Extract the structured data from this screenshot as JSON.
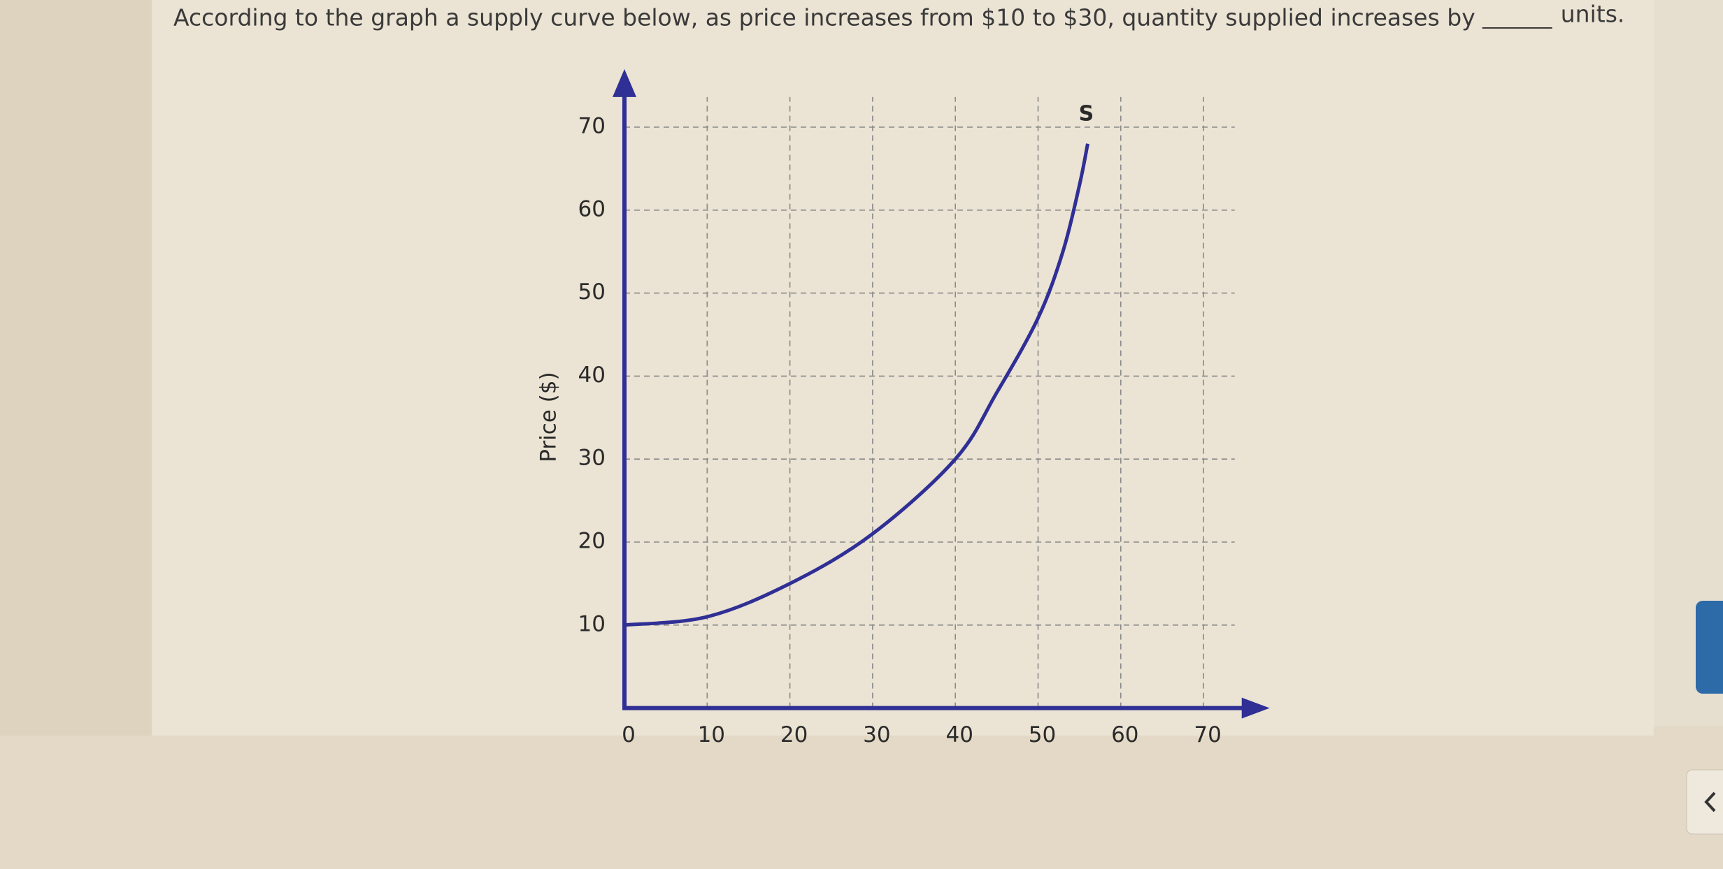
{
  "question": {
    "text_before": "According to the graph a supply curve below, as price increases from $10 to $30, quantity supplied increases by",
    "text_after": "units."
  },
  "chart_data": {
    "type": "line",
    "y_label": "Price ($)",
    "x": [
      0,
      10,
      20,
      30,
      40,
      45,
      50,
      53,
      55,
      56
    ],
    "series": [
      {
        "name": "S",
        "color": "#2f2f95",
        "values": [
          10,
          11,
          15,
          21,
          30,
          38,
          47,
          55,
          63,
          68
        ]
      }
    ],
    "xlim": [
      0,
      78
    ],
    "xticks": [
      0,
      10,
      20,
      30,
      40,
      50,
      60,
      70
    ],
    "ylim": [
      0,
      77
    ],
    "yticks": [
      10,
      20,
      30,
      40,
      50,
      60,
      70
    ],
    "grid": true,
    "axis_color": "#2f2f95"
  }
}
